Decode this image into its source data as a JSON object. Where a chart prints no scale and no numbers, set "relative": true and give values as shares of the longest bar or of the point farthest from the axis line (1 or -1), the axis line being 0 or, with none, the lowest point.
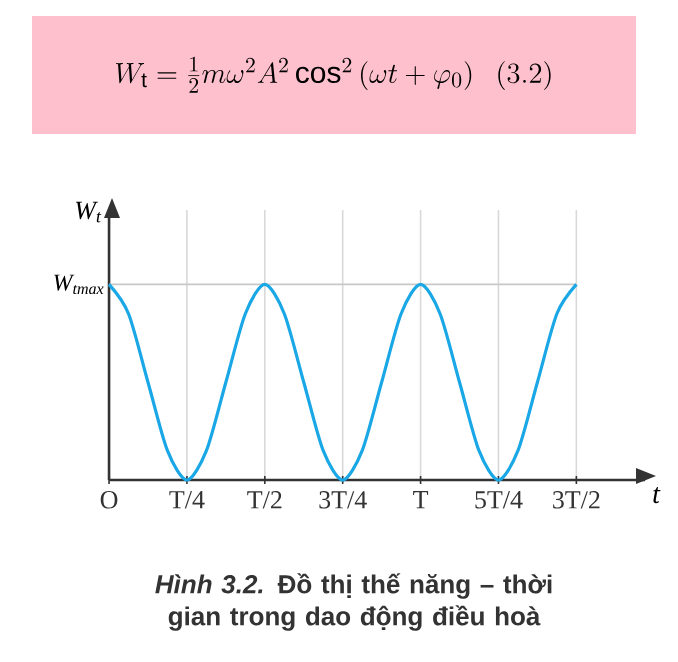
{
  "chart_data": {
    "type": "line",
    "relative": true,
    "title": "W_{\\mathrm{t}}=\\frac{1}{2}m\\omega^{2}A^{2}\\cos^{2}\\left(\\omega t+\\varphi_{0}\\right)\\ \\ (3.2)",
    "xlabel": "t",
    "ylabel": "W$_{t}$",
    "categories": [
      "O",
      null,
      null,
      null,
      "T/4",
      null,
      null,
      null,
      "T/2",
      null,
      null,
      null,
      "3T/4",
      null,
      null,
      null,
      "T",
      null,
      null,
      null,
      "5T/4",
      null,
      null,
      null,
      "3T/2"
    ],
    "series": [
      {
        "color": "#1aa7e6",
        "values": [
          1,
          0.85,
          0.5,
          0.15,
          0,
          0.15,
          0.5,
          0.85,
          1,
          0.85,
          0.5,
          0.15,
          0,
          0.15,
          0.5,
          0.85,
          1,
          0.85,
          0.5,
          0.15,
          0,
          0.15,
          0.5,
          0.85,
          1
        ]
      }
    ],
    "ref_lines": [
      {
        "axis": "y",
        "value": 1,
        "label": "W$_{tmax}$",
        "color": "#c8c8c8"
      }
    ],
    "grid": "x",
    "marker": "none",
    "line_style": "solid",
    "annotations": [
      "*Hình 3.2.* Đồ thị thế năng – thời gian trong dao động điều hoà"
    ]
  }
}
